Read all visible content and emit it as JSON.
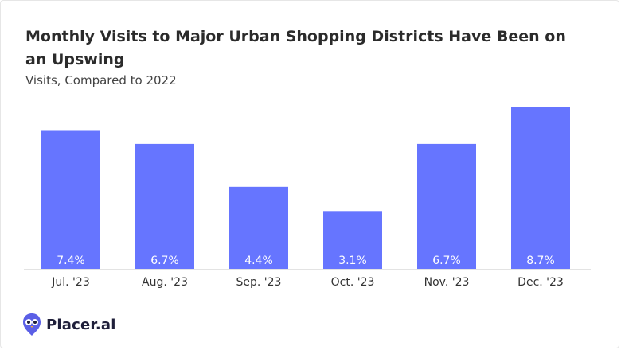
{
  "chart_data": {
    "type": "bar",
    "title": "Monthly Visits to Major Urban Shopping Districts Have Been on an Upswing",
    "subtitle": "Visits, Compared to 2022",
    "categories": [
      "Jul. '23",
      "Aug. '23",
      "Sep. '23",
      "Oct. '23",
      "Nov. '23",
      "Dec. '23"
    ],
    "values": [
      7.4,
      6.7,
      4.4,
      3.1,
      6.7,
      8.7
    ],
    "value_labels": [
      "7.4%",
      "6.7%",
      "4.4%",
      "3.1%",
      "6.7%",
      "8.7%"
    ],
    "ylim": [
      0,
      8.7
    ],
    "xlabel": "",
    "ylabel": "",
    "grid": false,
    "bar_color": "#6675ff"
  },
  "brand": {
    "name": "Placer.ai",
    "logo_icon": "owl-icon",
    "logo_color": "#5b5fe6"
  }
}
